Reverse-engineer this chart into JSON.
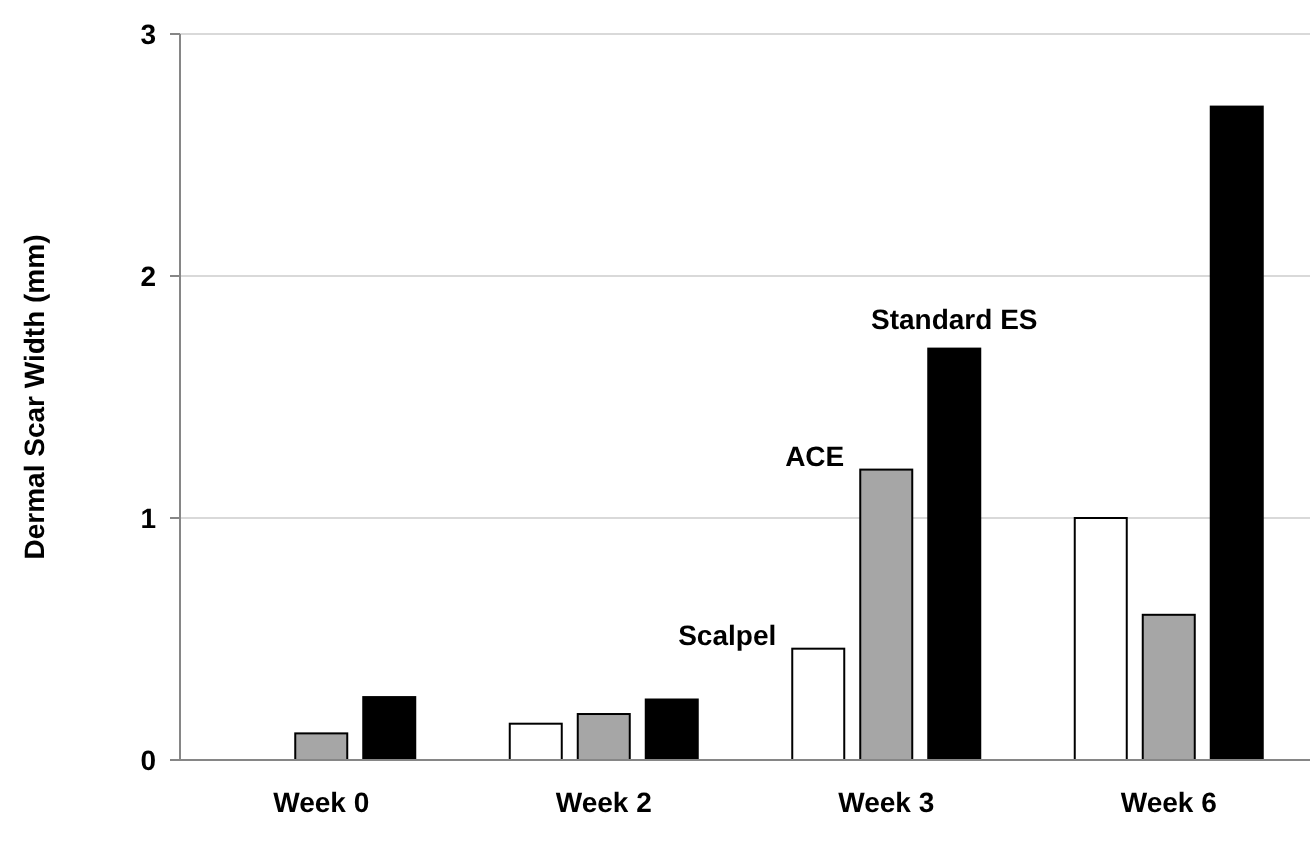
{
  "chart_data": {
    "type": "bar",
    "ylabel": "Dermal Scar Width (mm)",
    "categories": [
      "Week 0",
      "Week 2",
      "Week 3",
      "Week 6"
    ],
    "series": [
      {
        "name": "Scalpel",
        "color": "#ffffff",
        "values": [
          0,
          0.15,
          0.46,
          1.0
        ]
      },
      {
        "name": "ACE",
        "color": "#a6a6a6",
        "values": [
          0.11,
          0.19,
          1.2,
          0.6
        ]
      },
      {
        "name": "Standard ES",
        "color": "#000000",
        "values": [
          0.26,
          0.25,
          1.7,
          2.7
        ]
      }
    ],
    "ylim": [
      0,
      3
    ],
    "yticks": [
      0,
      1,
      2,
      3
    ],
    "grid": "y"
  }
}
